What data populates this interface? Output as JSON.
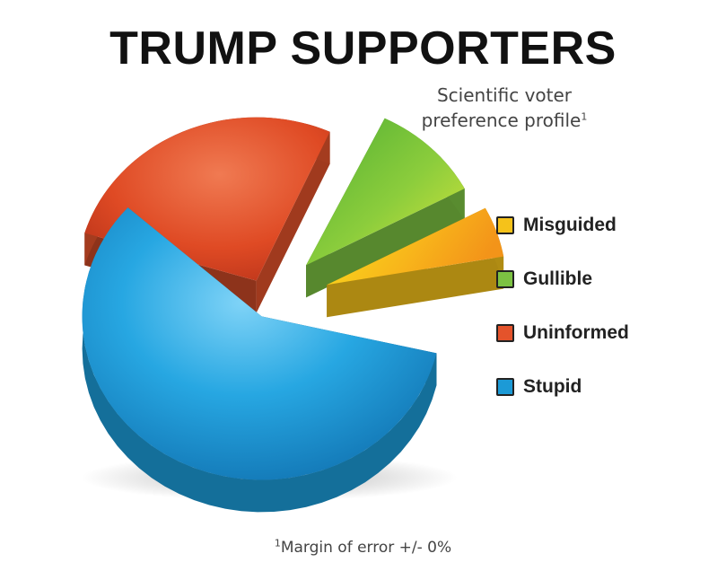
{
  "chart_data": {
    "type": "pie",
    "title": "TRUMP SUPPORTERS",
    "subtitle": "Scientific voter preference profile",
    "subtitle_mark": "1",
    "footnote_mark": "1",
    "footnote": "Margin of error +/- 0%",
    "categories": [
      "Misguided",
      "Gullible",
      "Uninformed",
      "Stupid"
    ],
    "values": [
      5,
      10,
      27,
      58
    ],
    "colors": {
      "Misguided": "#f5c21a",
      "Gullible": "#7cc242",
      "Uninformed": "#e4532b",
      "Stupid": "#1c9ad6"
    },
    "legend_position": "right",
    "style": "3d-exploded"
  }
}
